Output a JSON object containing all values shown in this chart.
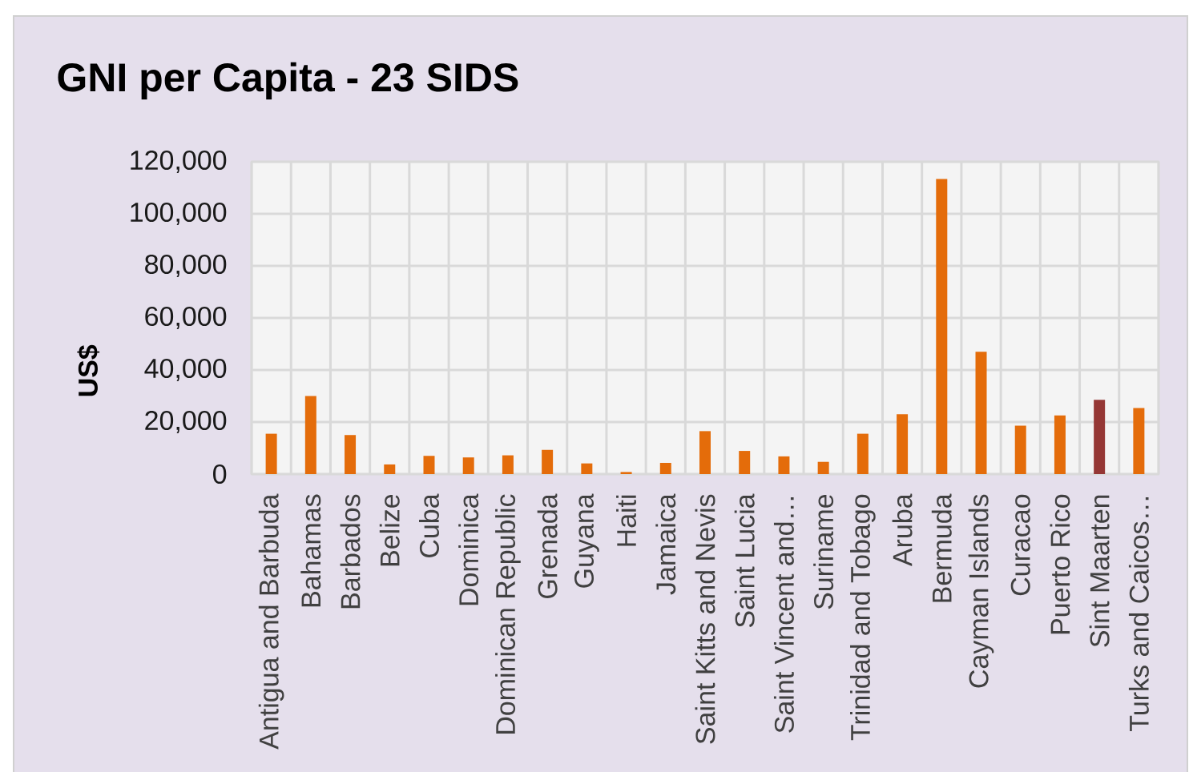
{
  "chart_data": {
    "type": "bar",
    "title": "GNI per Capita - 23 SIDS",
    "ylabel": "US$",
    "categories": [
      "Antigua and Barbuda",
      "Bahamas",
      "Barbados",
      "Belize",
      "Cuba",
      "Dominica",
      "Dominican Republic",
      "Grenada",
      "Guyana",
      "Haiti",
      "Jamaica",
      "Saint Kitts and Nevis",
      "Saint Lucia",
      "Saint Vincent and…",
      "Suriname",
      "Trinidad and Tobago",
      "Aruba",
      "Bermuda",
      "Cayman Islands",
      "Curacao",
      "Puerto Rico",
      "Sint Maarten",
      "Turks and Caicos…"
    ],
    "values": [
      15500,
      30000,
      15000,
      3700,
      7000,
      6400,
      7200,
      9300,
      4100,
      800,
      4300,
      16500,
      8900,
      6800,
      4700,
      15500,
      23000,
      113400,
      47000,
      18600,
      22500,
      28500,
      25400
    ],
    "colors": [
      "#e46c0a",
      "#e46c0a",
      "#e46c0a",
      "#e46c0a",
      "#e46c0a",
      "#e46c0a",
      "#e46c0a",
      "#e46c0a",
      "#e46c0a",
      "#e46c0a",
      "#e46c0a",
      "#e46c0a",
      "#e46c0a",
      "#e46c0a",
      "#e46c0a",
      "#e46c0a",
      "#e46c0a",
      "#e46c0a",
      "#e46c0a",
      "#e46c0a",
      "#e46c0a",
      "#953735",
      "#e46c0a"
    ],
    "ylim": [
      0,
      120000
    ],
    "yticks": [
      {
        "value": 0,
        "label": "0"
      },
      {
        "value": 20000,
        "label": "20,000"
      },
      {
        "value": 40000,
        "label": "40,000"
      },
      {
        "value": 60000,
        "label": "60,000"
      },
      {
        "value": 80000,
        "label": "80,000"
      },
      {
        "value": 100000,
        "label": "100,000"
      },
      {
        "value": 120000,
        "label": "120,000"
      }
    ],
    "grid": true
  }
}
